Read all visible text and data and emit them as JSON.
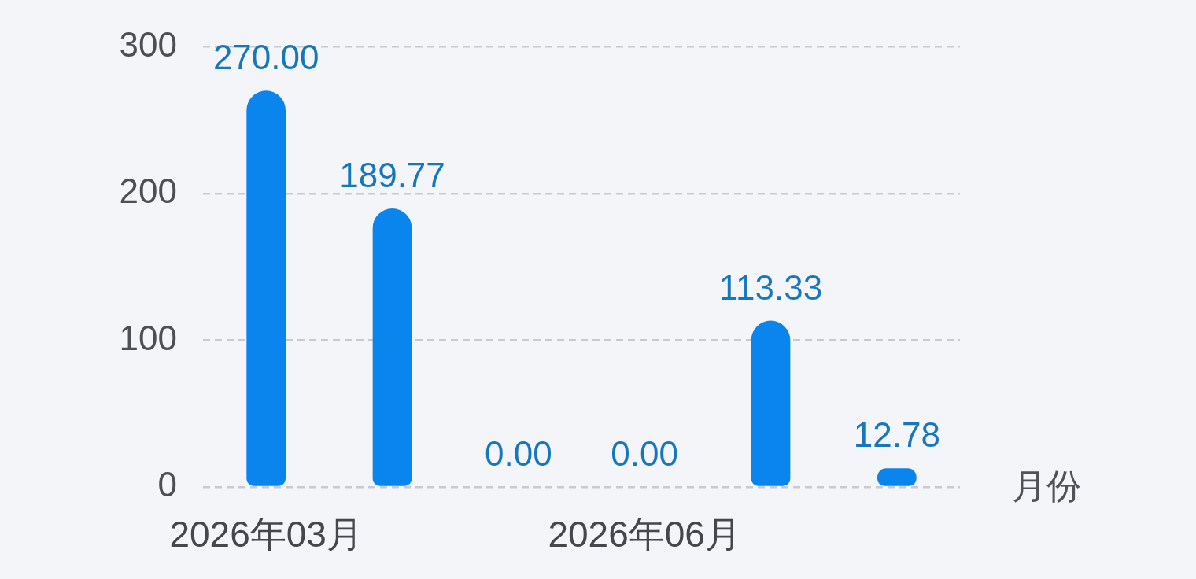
{
  "chart_data": {
    "type": "bar",
    "xlabel": "月份",
    "categories": [
      "2026年03月",
      null,
      null,
      "2026年06月",
      null,
      null
    ],
    "values": [
      270.0,
      189.77,
      0.0,
      0.0,
      113.33,
      12.78
    ],
    "value_labels": [
      "270.00",
      "189.77",
      "0.00",
      "0.00",
      "113.33",
      "12.78"
    ],
    "color": "#0a85ee",
    "ylim": [
      0,
      300
    ],
    "yticks": [
      0,
      100,
      200,
      300
    ],
    "grid": "y"
  }
}
